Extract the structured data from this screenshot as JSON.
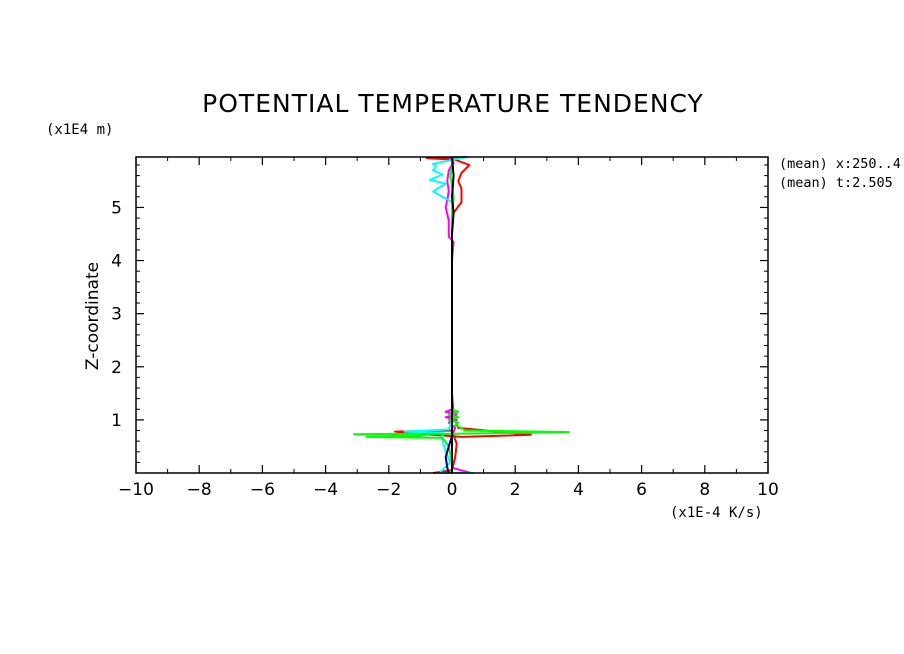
{
  "chart_data": {
    "type": "line",
    "title": "POTENTIAL TEMPERATURE TENDENCY",
    "xlabel": "(x1E-4 K/s)",
    "ylabel": "Z-coordinate",
    "y_unit": "(x1E4 m)",
    "xlim": [
      -10,
      10
    ],
    "ylim": [
      0,
      5.95
    ],
    "x_ticks": [
      -10,
      -8,
      -6,
      -4,
      -2,
      0,
      2,
      4,
      6,
      8,
      10
    ],
    "y_ticks": [
      1,
      2,
      3,
      4,
      5
    ],
    "annotations": [
      "(mean) x:250..4",
      "(mean) t:2.505"
    ],
    "grid": false,
    "series": [
      {
        "color": "#ff0000",
        "points": [
          [
            0.5,
            5.95
          ],
          [
            -0.8,
            5.93
          ],
          [
            0.1,
            5.9
          ],
          [
            0.55,
            5.8
          ],
          [
            0.3,
            5.65
          ],
          [
            0.2,
            5.5
          ],
          [
            0.3,
            5.35
          ],
          [
            0.3,
            5.1
          ],
          [
            0.05,
            4.9
          ],
          [
            0.0,
            4.6
          ],
          [
            0.0,
            3.0
          ],
          [
            0.0,
            1.5
          ],
          [
            0.05,
            1.1
          ],
          [
            0.2,
            0.85
          ],
          [
            2.5,
            0.72
          ],
          [
            0.3,
            0.68
          ],
          [
            -1.5,
            0.76
          ],
          [
            -1.8,
            0.78
          ],
          [
            0.0,
            0.8
          ],
          [
            0.15,
            0.55
          ],
          [
            0.1,
            0.3
          ],
          [
            0.0,
            0.05
          ],
          [
            -0.6,
            0.0
          ]
        ]
      },
      {
        "color": "#ff00ff",
        "points": [
          [
            -0.1,
            5.95
          ],
          [
            0.05,
            5.85
          ],
          [
            -0.1,
            5.7
          ],
          [
            -0.15,
            5.5
          ],
          [
            -0.1,
            5.3
          ],
          [
            -0.2,
            5.0
          ],
          [
            -0.1,
            4.75
          ],
          [
            -0.1,
            4.45
          ],
          [
            0.05,
            4.35
          ],
          [
            0.0,
            4.0
          ],
          [
            0.0,
            2.0
          ],
          [
            0.0,
            1.2
          ],
          [
            -0.2,
            1.15
          ],
          [
            0.15,
            1.1
          ],
          [
            -0.2,
            1.05
          ],
          [
            0.15,
            1.0
          ],
          [
            -0.1,
            0.95
          ],
          [
            0.1,
            0.85
          ],
          [
            0.0,
            0.7
          ],
          [
            0.0,
            0.4
          ],
          [
            0.0,
            0.1
          ],
          [
            0.6,
            0.0
          ]
        ]
      },
      {
        "color": "#00ffff",
        "points": [
          [
            0.5,
            5.95
          ],
          [
            0.2,
            5.92
          ],
          [
            -0.6,
            5.82
          ],
          [
            -0.5,
            5.78
          ],
          [
            -0.6,
            5.7
          ],
          [
            -0.3,
            5.62
          ],
          [
            -0.7,
            5.52
          ],
          [
            -0.2,
            5.45
          ],
          [
            -0.6,
            5.3
          ],
          [
            0.0,
            5.1
          ],
          [
            0.0,
            4.0
          ],
          [
            0.0,
            2.0
          ],
          [
            0.0,
            1.0
          ],
          [
            -0.1,
            0.82
          ],
          [
            -1.5,
            0.78
          ],
          [
            -0.3,
            0.75
          ],
          [
            -0.3,
            0.6
          ],
          [
            -0.2,
            0.4
          ],
          [
            -0.05,
            0.2
          ],
          [
            -0.4,
            0.0
          ],
          [
            0.7,
            0.0
          ]
        ]
      },
      {
        "color": "#00ff00",
        "points": [
          [
            0.05,
            5.95
          ],
          [
            -0.05,
            5.6
          ],
          [
            0.05,
            5.2
          ],
          [
            0.0,
            4.8
          ],
          [
            0.0,
            3.0
          ],
          [
            0.0,
            1.5
          ],
          [
            0.0,
            1.2
          ],
          [
            0.2,
            1.15
          ],
          [
            -0.1,
            1.1
          ],
          [
            0.2,
            1.05
          ],
          [
            -0.1,
            1.0
          ],
          [
            0.2,
            0.95
          ],
          [
            0.1,
            0.9
          ],
          [
            0.3,
            0.85
          ],
          [
            0.4,
            0.8
          ],
          [
            3.7,
            0.77
          ],
          [
            0.1,
            0.74
          ],
          [
            -3.1,
            0.73
          ],
          [
            -0.8,
            0.72
          ],
          [
            -1.2,
            0.69
          ],
          [
            -2.7,
            0.68
          ],
          [
            -0.3,
            0.66
          ],
          [
            -0.1,
            0.5
          ],
          [
            0.0,
            0.2
          ],
          [
            0.0,
            0.0
          ]
        ]
      },
      {
        "color": "#000080",
        "points": [
          [
            0.0,
            0.88
          ],
          [
            0.0,
            0.7
          ],
          [
            -0.1,
            0.5
          ],
          [
            -0.2,
            0.3
          ],
          [
            -0.15,
            0.1
          ],
          [
            -0.1,
            0.0
          ]
        ]
      },
      {
        "color": "#000000",
        "points": [
          [
            0.0,
            5.95
          ],
          [
            0.05,
            5.6
          ],
          [
            0.0,
            5.2
          ],
          [
            0.05,
            4.9
          ],
          [
            0.0,
            4.5
          ],
          [
            0.0,
            3.0
          ],
          [
            0.0,
            1.5
          ],
          [
            0.0,
            0.8
          ],
          [
            0.0,
            0.0
          ]
        ]
      }
    ]
  }
}
